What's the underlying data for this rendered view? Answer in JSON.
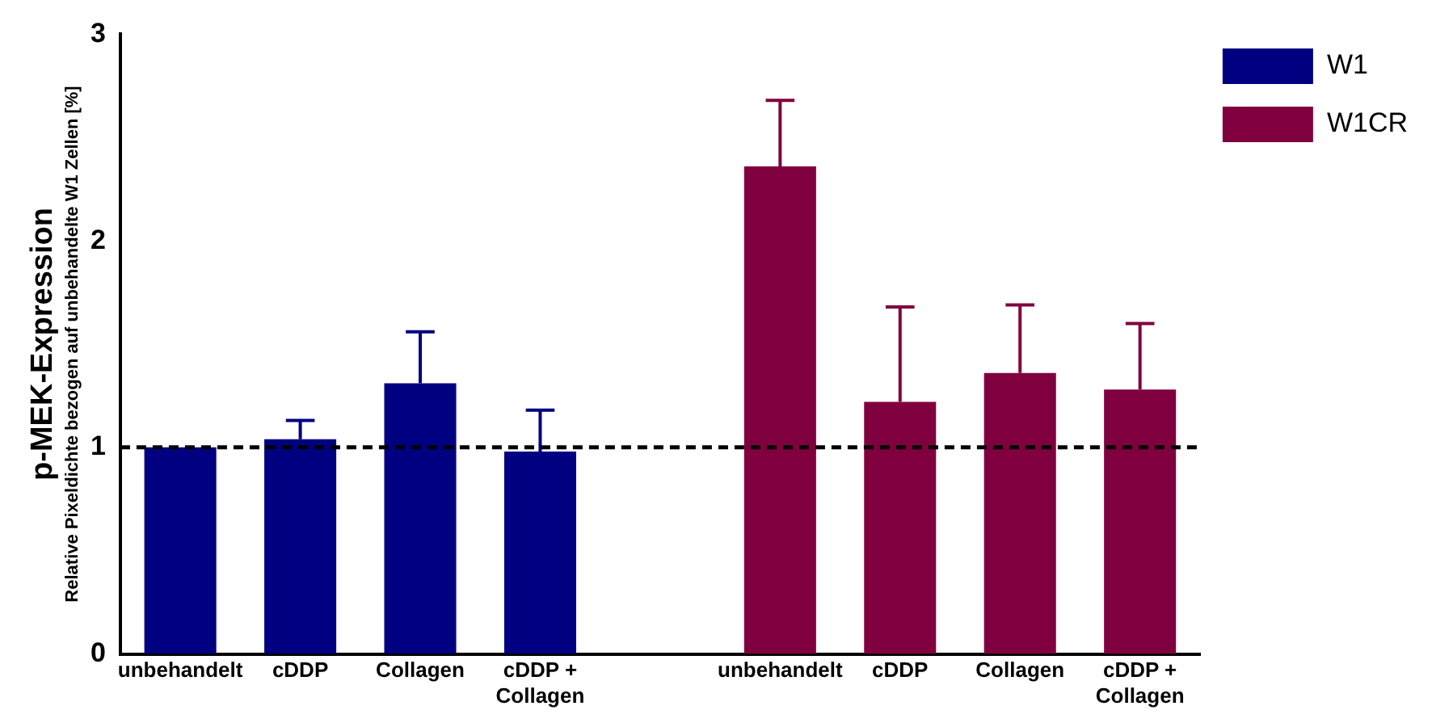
{
  "chart_data": {
    "type": "bar",
    "ylabel": "p-MEK-Expression\nRelative Pixeldichte bezogen auf unbehandelte W1 Zellen [%]",
    "categories": [
      "unbehandelt",
      "cDDP",
      "Collagen",
      "cDDP + Collagen",
      null,
      "unbehandelt",
      "cDDP",
      "Collagen",
      "cDDP + Collagen"
    ],
    "series": [
      {
        "name": "W1",
        "color": "#000080",
        "values": [
          1.0,
          1.04,
          1.31,
          0.98,
          null,
          null,
          null,
          null,
          null
        ],
        "errors": [
          null,
          [
            1.04,
            1.13
          ],
          [
            1.31,
            1.56
          ],
          [
            0.98,
            1.18
          ],
          null,
          null,
          null,
          null,
          null
        ]
      },
      {
        "name": "W1CR",
        "color": "#80003f",
        "values": [
          null,
          null,
          null,
          null,
          null,
          2.36,
          1.22,
          1.36,
          1.28
        ],
        "errors": [
          null,
          null,
          null,
          null,
          null,
          [
            2.36,
            2.68
          ],
          [
            1.22,
            1.68
          ],
          [
            1.36,
            1.69
          ],
          [
            1.28,
            1.6
          ]
        ]
      }
    ],
    "ylim": [
      0,
      3
    ],
    "yticks": [
      0,
      1,
      2,
      3
    ],
    "ref_lines": [
      {
        "axis": "y",
        "value": 1,
        "color": "#000000",
        "line_style": "dashed"
      }
    ],
    "grid": false,
    "legend": "top right"
  }
}
